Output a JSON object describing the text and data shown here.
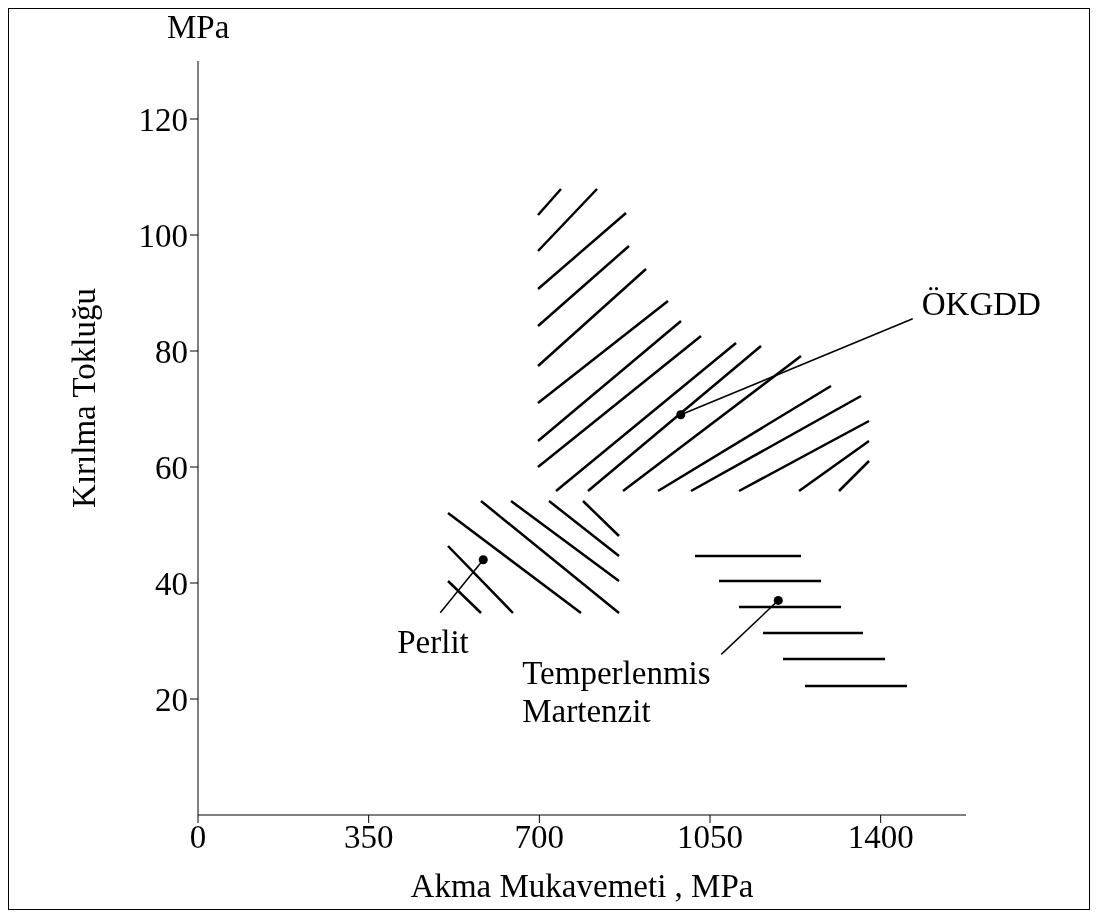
{
  "chart_data": {
    "type": "scatter",
    "xlabel": "Akma Mukavemeti , MPa",
    "ylabel": "Kırılma Tokluğu",
    "x": [
      585,
      990,
      1190
    ],
    "values": [
      44,
      69,
      37
    ],
    "color": "#000000",
    "marker": "circle",
    "xlim": [
      0,
      1575
    ],
    "ylim": [
      0,
      130
    ],
    "xticks": [
      0,
      350,
      700,
      1050,
      1400
    ],
    "yticks": [
      20,
      40,
      60,
      80,
      100,
      120
    ],
    "grid": false,
    "legend": false,
    "annotations": [
      "MPa",
      {
        "text": "Perlit",
        "x": 585,
        "y": 44
      },
      {
        "text": "ÖKGDD",
        "x": 990,
        "y": 69
      },
      {
        "text": "Temperlenmis Martenzit",
        "x": 1190,
        "y": 37
      }
    ]
  }
}
